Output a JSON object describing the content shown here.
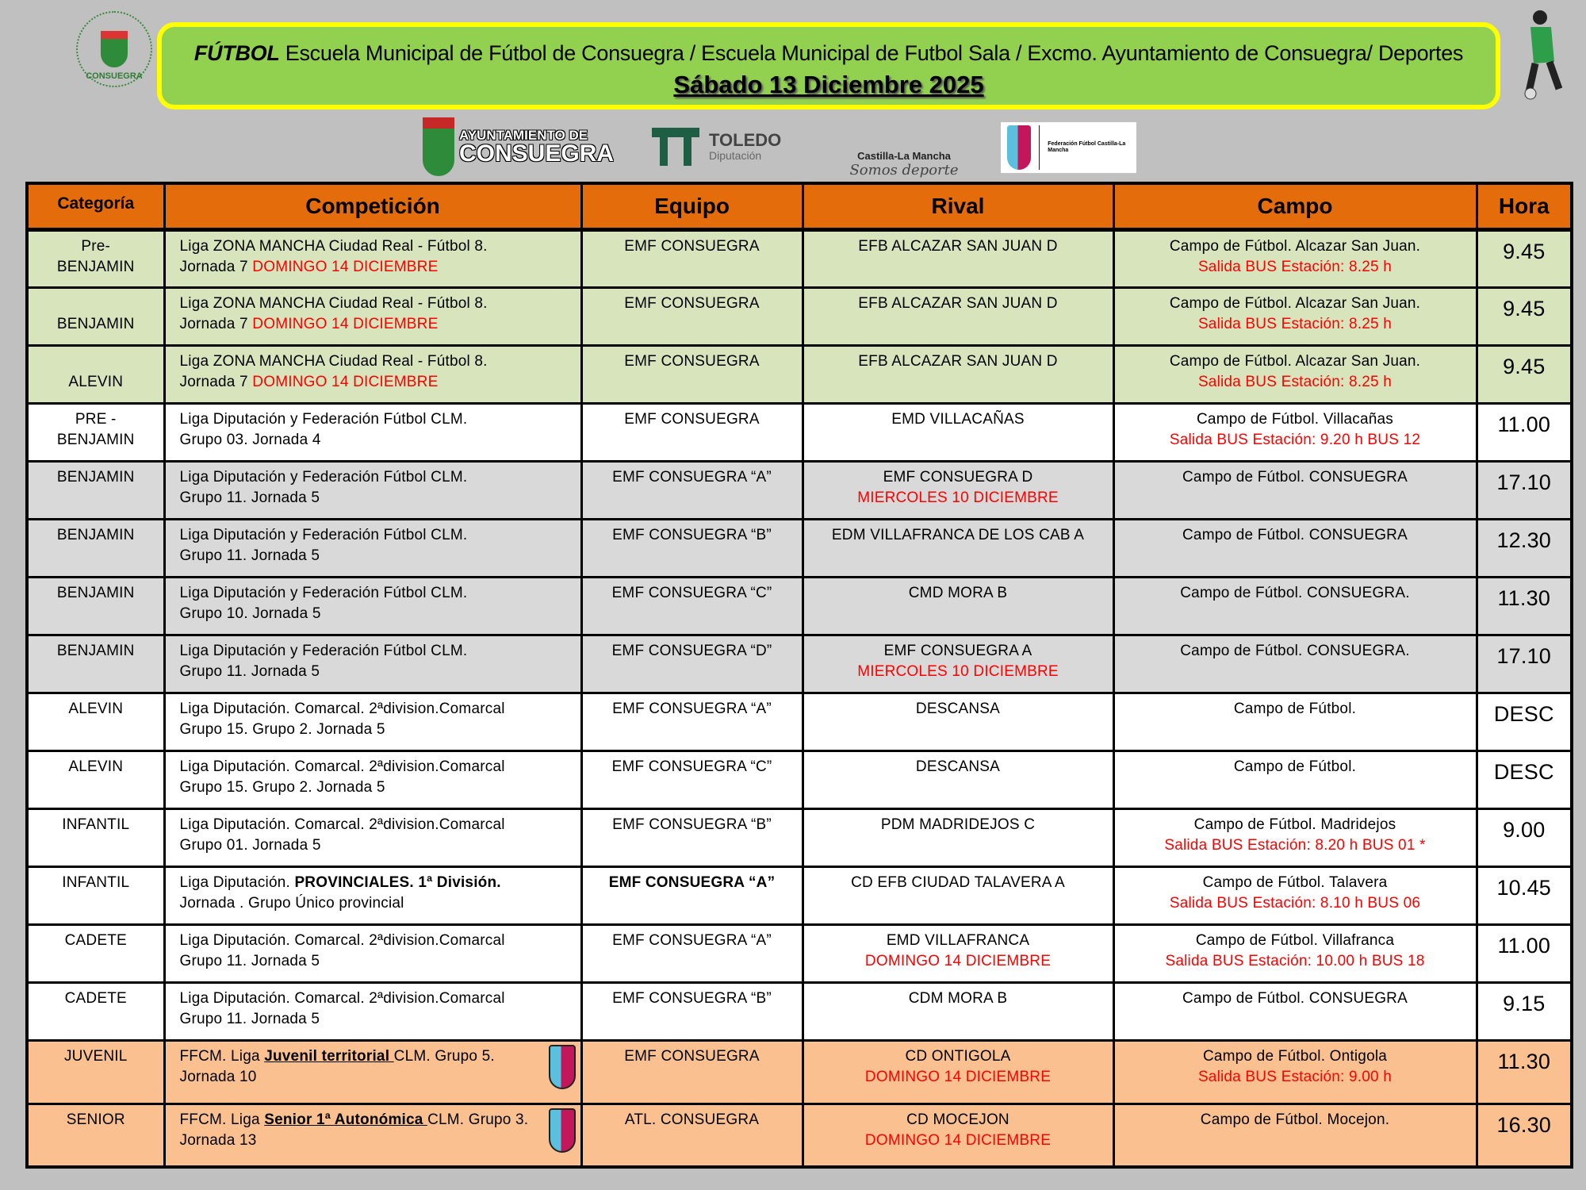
{
  "header": {
    "title_bold": "FÚTBOL",
    "title_rest": " Escuela Municipal de Fútbol de Consuegra / Escuela Municipal de Futbol Sala / Excmo. Ayuntamiento de Consuegra/ Deportes",
    "date": "Sábado 13 Diciembre 2025"
  },
  "logos": {
    "crest": "CONSUEGRA",
    "ayto_line1": "AYUNTAMIENTO DE",
    "ayto_line2": "CONSUEGRA",
    "toledo_line1": "TOLEDO",
    "toledo_line2": "Diputación",
    "clm_line1": "Castilla-La Mancha",
    "clm_line2": "Somos deporte",
    "fed": "Federación Fútbol Castilla-La Mancha"
  },
  "colors": {
    "header": "#e46c0a",
    "green": "#d8e4bc",
    "gray": "#d9d9d9",
    "orange": "#fac090",
    "red": "#ff0000",
    "banner": "#92d050",
    "banner_border": "#ffff00"
  },
  "table": {
    "headers": [
      "Categoría",
      "Competición",
      "Equipo",
      "Rival",
      "Campo",
      "Hora"
    ],
    "rows": [
      {
        "style": "green",
        "cat": [
          "Pre-",
          "BENJAMIN"
        ],
        "comp": [
          [
            {
              "t": "Liga  ZONA MANCHA Ciudad Real - Fútbol  8."
            }
          ],
          [
            {
              "t": "Jornada 7 "
            },
            {
              "t": "DOMINGO 14 DICIEMBRE",
              "s": "red"
            }
          ]
        ],
        "equipo": [
          [
            {
              "t": "EMF CONSUEGRA"
            }
          ]
        ],
        "rival": [
          [
            {
              "t": "EFB ALCAZAR SAN JUAN D"
            }
          ]
        ],
        "campo": [
          [
            {
              "t": "Campo de Fútbol. Alcazar San Juan."
            }
          ],
          [
            {
              "t": "Salida BUS Estación:  8.25 h",
              "s": "red"
            }
          ]
        ],
        "hora": "9.45"
      },
      {
        "style": "green",
        "cat": [
          "",
          "BENJAMIN"
        ],
        "comp": [
          [
            {
              "t": "Liga  ZONA MANCHA Ciudad Real - Fútbol  8."
            }
          ],
          [
            {
              "t": "Jornada 7 "
            },
            {
              "t": "DOMINGO 14 DICIEMBRE",
              "s": "red"
            }
          ]
        ],
        "equipo": [
          [
            {
              "t": "EMF CONSUEGRA"
            }
          ]
        ],
        "rival": [
          [
            {
              "t": "EFB ALCAZAR SAN JUAN D"
            }
          ]
        ],
        "campo": [
          [
            {
              "t": "Campo de Fútbol. Alcazar San Juan."
            }
          ],
          [
            {
              "t": "Salida BUS Estación:  8.25 h",
              "s": "red"
            }
          ]
        ],
        "hora": "9.45"
      },
      {
        "style": "green",
        "cat": [
          "",
          "ALEVIN"
        ],
        "comp": [
          [
            {
              "t": "Liga  ZONA MANCHA Ciudad Real - Fútbol  8."
            }
          ],
          [
            {
              "t": "Jornada 7 "
            },
            {
              "t": "DOMINGO 14 DICIEMBRE",
              "s": "red"
            }
          ]
        ],
        "equipo": [
          [
            {
              "t": "EMF CONSUEGRA"
            }
          ]
        ],
        "rival": [
          [
            {
              "t": "EFB ALCAZAR SAN JUAN D"
            }
          ]
        ],
        "campo": [
          [
            {
              "t": "Campo de Fútbol. Alcazar San Juan."
            }
          ],
          [
            {
              "t": "Salida BUS Estación:  8.25 h",
              "s": "red"
            }
          ]
        ],
        "hora": "9.45"
      },
      {
        "style": "white",
        "cat": [
          "PRE -",
          "BENJAMIN"
        ],
        "comp": [
          [
            {
              "t": "Liga Diputación y Federación Fútbol CLM."
            }
          ],
          [
            {
              "t": "Grupo 03. Jornada 4"
            }
          ]
        ],
        "equipo": [
          [
            {
              "t": "EMF CONSUEGRA"
            }
          ]
        ],
        "rival": [
          [
            {
              "t": "EMD VILLACAÑAS"
            }
          ]
        ],
        "campo": [
          [
            {
              "t": "Campo de Fútbol. Villacañas"
            }
          ],
          [
            {
              "t": "Salida BUS Estación:  9.20 h BUS 12",
              "s": "red"
            }
          ]
        ],
        "hora": "11.00"
      },
      {
        "style": "gray",
        "cat": [
          "BENJAMIN"
        ],
        "comp": [
          [
            {
              "t": "Liga Diputación y Federación Fútbol CLM."
            }
          ],
          [
            {
              "t": "Grupo 11. Jornada 5"
            }
          ]
        ],
        "equipo": [
          [
            {
              "t": "EMF CONSUEGRA “A”"
            }
          ]
        ],
        "rival": [
          [
            {
              "t": "EMF CONSUEGRA D"
            }
          ],
          [
            {
              "t": "MIERCOLES 10 DICIEMBRE",
              "s": "red"
            }
          ]
        ],
        "campo": [
          [
            {
              "t": "Campo de Fútbol. CONSUEGRA"
            }
          ]
        ],
        "hora": "17.10"
      },
      {
        "style": "gray",
        "cat": [
          "BENJAMIN"
        ],
        "comp": [
          [
            {
              "t": "Liga Diputación y Federación Fútbol CLM."
            }
          ],
          [
            {
              "t": "Grupo 11. Jornada 5"
            }
          ]
        ],
        "equipo": [
          [
            {
              "t": "EMF CONSUEGRA “B”"
            }
          ]
        ],
        "rival": [
          [
            {
              "t": "EDM VILLAFRANCA DE LOS CAB A"
            }
          ]
        ],
        "campo": [
          [
            {
              "t": "Campo de Fútbol. CONSUEGRA"
            }
          ]
        ],
        "hora": "12.30"
      },
      {
        "style": "gray",
        "cat": [
          "BENJAMIN"
        ],
        "comp": [
          [
            {
              "t": "Liga Diputación y Federación Fútbol CLM."
            }
          ],
          [
            {
              "t": "Grupo 10. Jornada 5"
            }
          ]
        ],
        "equipo": [
          [
            {
              "t": "EMF CONSUEGRA “C”"
            }
          ]
        ],
        "rival": [
          [
            {
              "t": "CMD MORA B"
            }
          ]
        ],
        "campo": [
          [
            {
              "t": "Campo de Fútbol. CONSUEGRA."
            }
          ]
        ],
        "hora": "11.30"
      },
      {
        "style": "gray",
        "cat": [
          "BENJAMIN"
        ],
        "comp": [
          [
            {
              "t": "Liga Diputación y Federación Fútbol CLM."
            }
          ],
          [
            {
              "t": "Grupo 11. Jornada 5"
            }
          ]
        ],
        "equipo": [
          [
            {
              "t": "EMF CONSUEGRA “D”"
            }
          ]
        ],
        "rival": [
          [
            {
              "t": "EMF CONSUEGRA A"
            }
          ],
          [
            {
              "t": "MIERCOLES 10 DICIEMBRE",
              "s": "red"
            }
          ]
        ],
        "campo": [
          [
            {
              "t": "Campo de Fútbol. CONSUEGRA."
            }
          ]
        ],
        "hora": "17.10"
      },
      {
        "style": "white",
        "cat": [
          "ALEVIN"
        ],
        "comp": [
          [
            {
              "t": "Liga Diputación. Comarcal.  2ªdivision.Comarcal"
            }
          ],
          [
            {
              "t": "Grupo 15. Grupo 2. Jornada 5"
            }
          ]
        ],
        "equipo": [
          [
            {
              "t": "EMF CONSUEGRA “A”"
            }
          ]
        ],
        "rival": [
          [
            {
              "t": "DESCANSA"
            }
          ]
        ],
        "campo": [
          [
            {
              "t": "Campo de Fútbol."
            }
          ]
        ],
        "hora": "DESC"
      },
      {
        "style": "white",
        "cat": [
          "ALEVIN"
        ],
        "comp": [
          [
            {
              "t": "Liga Diputación. Comarcal.  2ªdivision.Comarcal"
            }
          ],
          [
            {
              "t": "Grupo 15. Grupo 2. Jornada 5"
            }
          ]
        ],
        "equipo": [
          [
            {
              "t": "EMF CONSUEGRA “C”"
            }
          ]
        ],
        "rival": [
          [
            {
              "t": "DESCANSA"
            }
          ]
        ],
        "campo": [
          [
            {
              "t": "Campo de Fútbol."
            }
          ]
        ],
        "hora": "DESC"
      },
      {
        "style": "white",
        "cat": [
          "INFANTIL"
        ],
        "comp": [
          [
            {
              "t": "Liga Diputación. Comarcal.  2ªdivision.Comarcal"
            }
          ],
          [
            {
              "t": "Grupo 01. Jornada 5"
            }
          ]
        ],
        "equipo": [
          [
            {
              "t": "EMF CONSUEGRA “B”"
            }
          ]
        ],
        "rival": [
          [
            {
              "t": "PDM MADRIDEJOS C"
            }
          ]
        ],
        "campo": [
          [
            {
              "t": "Campo de Fútbol. Madridejos"
            }
          ],
          [
            {
              "t": "Salida BUS Estación:  8.20 h BUS 01 *",
              "s": "red"
            }
          ]
        ],
        "hora": "9.00"
      },
      {
        "style": "white",
        "cat": [
          "INFANTIL"
        ],
        "comp": [
          [
            {
              "t": "Liga Diputación. "
            },
            {
              "t": "PROVINCIALES.  1ª División.",
              "s": "bold"
            }
          ],
          [
            {
              "t": "Jornada . Grupo Único provincial"
            }
          ]
        ],
        "equipo": [
          [
            {
              "t": "EMF CONSUEGRA “A”",
              "s": "bold"
            }
          ]
        ],
        "rival": [
          [
            {
              "t": "CD EFB CIUDAD TALAVERA A"
            }
          ]
        ],
        "campo": [
          [
            {
              "t": "Campo de Fútbol. Talavera"
            }
          ],
          [
            {
              "t": "Salida BUS Estación:  8.10 h BUS 06",
              "s": "red"
            }
          ]
        ],
        "hora": "10.45"
      },
      {
        "style": "white",
        "cat": [
          "CADETE"
        ],
        "comp": [
          [
            {
              "t": "Liga Diputación. Comarcal.  2ªdivision.Comarcal"
            }
          ],
          [
            {
              "t": "Grupo 11. Jornada 5"
            }
          ]
        ],
        "equipo": [
          [
            {
              "t": "EMF CONSUEGRA “A”"
            }
          ]
        ],
        "rival": [
          [
            {
              "t": "EMD VILLAFRANCA"
            }
          ],
          [
            {
              "t": "DOMINGO 14 DICIEMBRE",
              "s": "red"
            }
          ]
        ],
        "campo": [
          [
            {
              "t": "Campo de Fútbol.  Villafranca"
            }
          ],
          [
            {
              "t": "Salida BUS Estación:  10.00 h BUS 18",
              "s": "red"
            }
          ]
        ],
        "hora": "11.00"
      },
      {
        "style": "white",
        "cat": [
          "CADETE"
        ],
        "comp": [
          [
            {
              "t": "Liga Diputación. Comarcal. 2ªdivision.Comarcal"
            }
          ],
          [
            {
              "t": "Grupo 11. Jornada 5"
            }
          ]
        ],
        "equipo": [
          [
            {
              "t": "EMF CONSUEGRA “B”"
            }
          ]
        ],
        "rival": [
          [
            {
              "t": "CDM MORA B"
            }
          ]
        ],
        "campo": [
          [
            {
              "t": "Campo de Fútbol. CONSUEGRA"
            }
          ]
        ],
        "hora": "9.15"
      },
      {
        "style": "orange",
        "big": true,
        "icon": "ffcm-logo-icon",
        "cat": [
          "JUVENIL"
        ],
        "comp": [
          [
            {
              "t": "FFCM. Liga "
            },
            {
              "t": "Juvenil territorial ",
              "s": "u"
            },
            {
              "t": "CLM.  Grupo 5."
            }
          ],
          [
            {
              "t": "Jornada 10"
            }
          ]
        ],
        "equipo": [
          [
            {
              "t": "EMF CONSUEGRA"
            }
          ]
        ],
        "rival": [
          [
            {
              "t": "CD ONTIGOLA"
            }
          ],
          [
            {
              "t": "DOMINGO 14 DICIEMBRE",
              "s": "red"
            }
          ]
        ],
        "campo": [
          [
            {
              "t": "Campo de Fútbol. Ontigola"
            }
          ],
          [
            {
              "t": "Salida BUS Estación:  9.00 h",
              "s": "red"
            }
          ]
        ],
        "hora": "11.30"
      },
      {
        "style": "orange",
        "big": true,
        "icon": "ffcm-logo-icon",
        "cat": [
          "SENIOR"
        ],
        "comp": [
          [
            {
              "t": "FFCM. Liga "
            },
            {
              "t": "Senior 1ª Autonómica ",
              "s": "u"
            },
            {
              "t": "CLM.  Grupo 3."
            }
          ],
          [
            {
              "t": "Jornada 13"
            }
          ]
        ],
        "equipo": [
          [
            {
              "t": "ATL. CONSUEGRA"
            }
          ]
        ],
        "rival": [
          [
            {
              "t": "CD MOCEJON"
            }
          ],
          [
            {
              "t": "DOMINGO 14 DICIEMBRE",
              "s": "red"
            }
          ]
        ],
        "campo": [
          [
            {
              "t": "Campo de Fútbol. Mocejon."
            }
          ]
        ],
        "hora": "16.30"
      }
    ]
  }
}
